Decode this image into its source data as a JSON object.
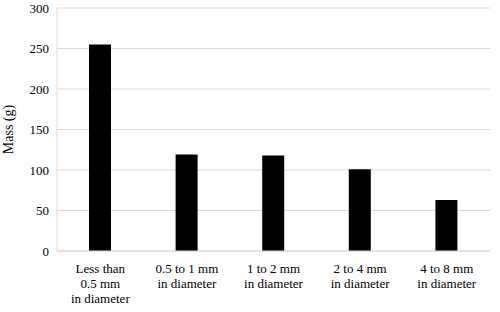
{
  "chart_data": {
    "type": "bar",
    "y_label": "Mass (g)",
    "categories": [
      "Less than\n0.5 mm\nin diameter",
      "0.5 to 1 mm\nin diameter",
      "1 to 2 mm\nin diameter",
      "2 to 4 mm\nin diameter",
      "4 to 8 mm\nin diameter"
    ],
    "values": [
      255,
      119,
      118,
      101,
      63
    ],
    "color": "#000000",
    "ylim": [
      0,
      300
    ],
    "yticks": [
      0,
      50,
      100,
      150,
      200,
      250,
      300
    ],
    "grid": true
  }
}
